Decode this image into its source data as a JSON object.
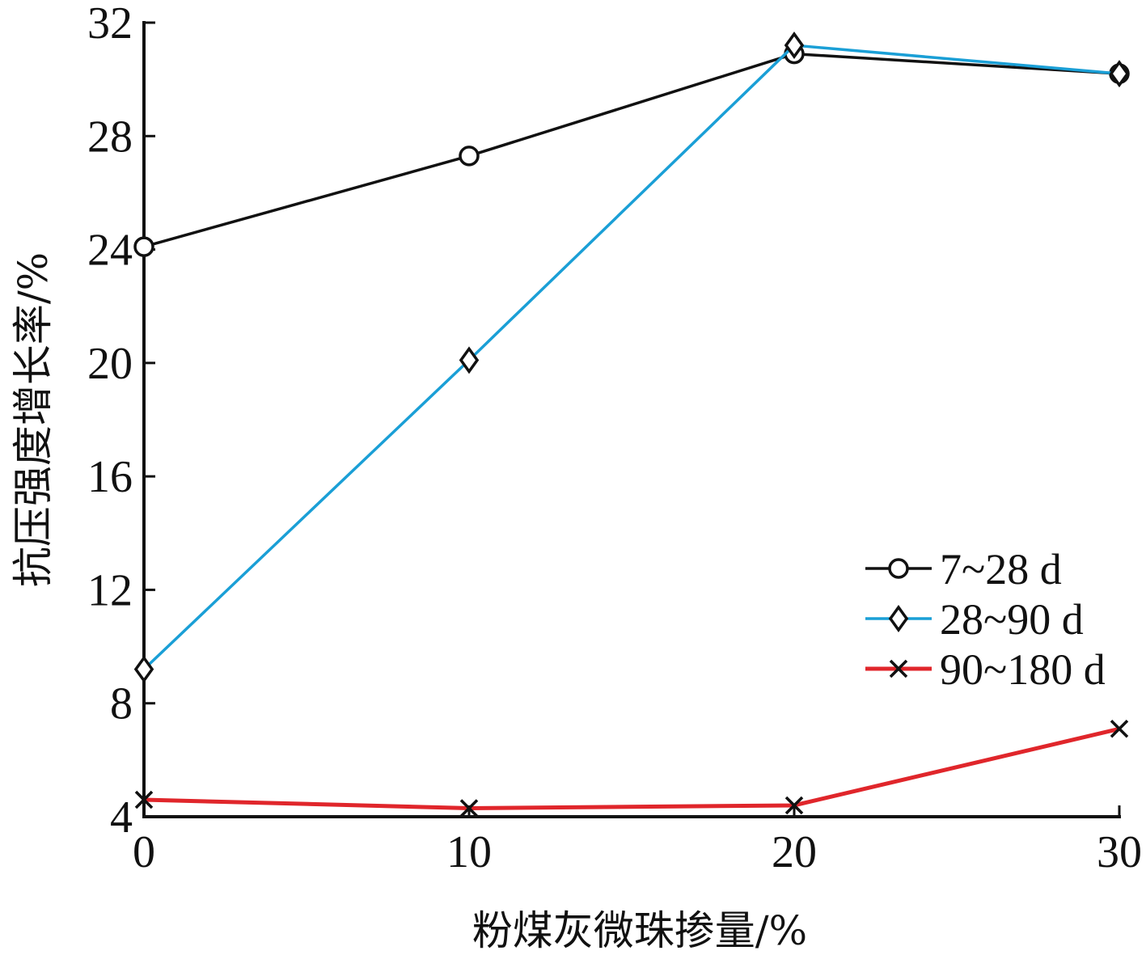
{
  "chart_data": {
    "type": "line",
    "title": "",
    "xlabel": "粉煤灰微珠掺量/%",
    "ylabel": "抗压强度增长率/%",
    "x": [
      0,
      10,
      20,
      30
    ],
    "xlim": [
      0,
      30
    ],
    "ylim": [
      4,
      32
    ],
    "xticks": [
      0,
      10,
      20,
      30
    ],
    "yticks": [
      4,
      8,
      12,
      16,
      20,
      24,
      28,
      32
    ],
    "grid": false,
    "legend_position": "right",
    "series": [
      {
        "name": "7~28 d",
        "values": [
          24.1,
          27.3,
          30.9,
          30.2
        ],
        "color": "#111111",
        "marker": "circle"
      },
      {
        "name": "28~90 d",
        "values": [
          9.2,
          20.1,
          31.2,
          30.2
        ],
        "color": "#1a9fd6",
        "marker": "diamond"
      },
      {
        "name": "90~180 d",
        "values": [
          4.6,
          4.3,
          4.4,
          7.1
        ],
        "color": "#e0262b",
        "marker": "x"
      }
    ]
  }
}
